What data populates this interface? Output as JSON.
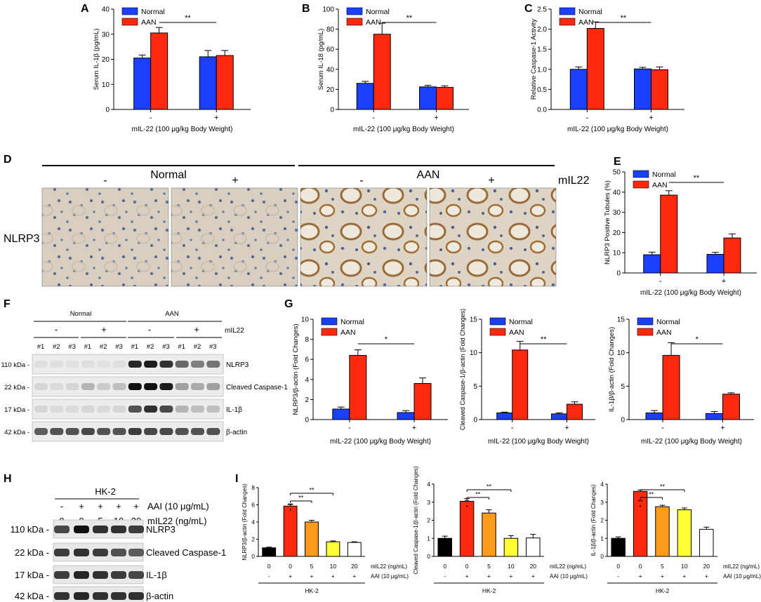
{
  "panel_letters": {
    "A": "A",
    "B": "B",
    "C": "C",
    "D": "D",
    "E": "E",
    "F": "F",
    "G": "G",
    "H": "H",
    "I": "I"
  },
  "colors": {
    "normal": "#1b3fff",
    "aan": "#ff2a0d",
    "black": "#000000",
    "orange": "#ff9a1a",
    "yellow": "#ffff33",
    "white": "#ffffff"
  },
  "legend": {
    "normal": "Normal",
    "aan": "AAN"
  },
  "sig": {
    "double": "**",
    "single": "*"
  },
  "xlabel_invivo": "mIL-22 (100 μg/kg Body Weight)",
  "xticks_invivo": [
    "-",
    "+"
  ],
  "panel_d": {
    "groups": [
      "Normal",
      "AAN"
    ],
    "signs": [
      "-",
      "+",
      "-",
      "+"
    ],
    "row_label": "NLRP3",
    "right_label": "mIL22"
  },
  "panel_f": {
    "groups": [
      "Normal",
      "AAN"
    ],
    "signs": [
      "-",
      "+",
      "-",
      "+"
    ],
    "row_label": "mIL22",
    "lanes": [
      "#1",
      "#2",
      "#3",
      "#1",
      "#2",
      "#3",
      "#1",
      "#2",
      "#3",
      "#1",
      "#2",
      "#3"
    ],
    "markers": [
      "110 kDa -",
      "22 kDa -",
      "17 kDa -",
      "42 kDa -"
    ],
    "proteins": [
      "NLRP3",
      "Cleaved Caspase-1",
      "IL-1β",
      "β-actin"
    ]
  },
  "panel_h": {
    "cell": "HK-2",
    "aai_signs": [
      "-",
      "+",
      "+",
      "+",
      "+"
    ],
    "aai_label": "AAI (10 μg/mL)",
    "doses": [
      "0",
      "0",
      "5",
      "10",
      "20"
    ],
    "dose_label": "mIL22 (ng/mL)",
    "markers": [
      "110 kDa -",
      "22 kDa -",
      "17 kDa -",
      "42 kDa -"
    ],
    "proteins": [
      "NLRP3",
      "Cleaved Caspase-1",
      "IL-1β",
      "β-actin"
    ]
  },
  "panel_i": {
    "row1": [
      "0",
      "0",
      "5",
      "10",
      "20"
    ],
    "row1_label": "mIL22 (ng/mL)",
    "row2": [
      "-",
      "+",
      "+",
      "+",
      "+"
    ],
    "row2_label": "AAI (10 μg/mL)",
    "cell": "HK-2"
  },
  "chart_data": [
    {
      "id": "A",
      "type": "bar",
      "categories": [
        "-",
        "+"
      ],
      "series": [
        {
          "name": "Normal",
          "values": [
            20.5,
            21
          ]
        },
        {
          "name": "AAN",
          "values": [
            30.5,
            21.5
          ]
        }
      ],
      "errors": [
        [
          1.2,
          2.5
        ],
        [
          2.2,
          2
        ]
      ],
      "ylabel": "Serum IL-1β (pg/mL)",
      "xlabel": "mIL-22 (100 μg/kg Body Weight)",
      "ylim": [
        0,
        40
      ],
      "yticks": [
        "0",
        "10",
        "20",
        "30",
        "40"
      ],
      "significance": "**"
    },
    {
      "id": "B",
      "type": "bar",
      "categories": [
        "-",
        "+"
      ],
      "series": [
        {
          "name": "Normal",
          "values": [
            26,
            22.5
          ]
        },
        {
          "name": "AAN",
          "values": [
            75,
            22
          ]
        }
      ],
      "errors": [
        [
          2,
          1.5
        ],
        [
          11,
          1.5
        ]
      ],
      "ylabel": "Serum IL-18 (pg/mL)",
      "xlabel": "mIL-22 (100 μg/kg Body Weight)",
      "ylim": [
        0,
        100
      ],
      "yticks": [
        "0",
        "20",
        "40",
        "60",
        "80",
        "100"
      ],
      "significance": "**"
    },
    {
      "id": "C",
      "type": "bar",
      "categories": [
        "-",
        "+"
      ],
      "series": [
        {
          "name": "Normal",
          "values": [
            1.0,
            1.01
          ]
        },
        {
          "name": "AAN",
          "values": [
            2.02,
            0.99
          ]
        }
      ],
      "errors": [
        [
          0.06,
          0.04
        ],
        [
          0.16,
          0.07
        ]
      ],
      "ylabel": "Relative Caspase-1 Activity",
      "xlabel": "mIL-22 (100 μg/kg Body Weight)",
      "ylim": [
        0,
        2.5
      ],
      "yticks": [
        "0.0",
        "0.5",
        "1.0",
        "1.5",
        "2.0",
        "2.5"
      ],
      "significance": "**"
    },
    {
      "id": "E",
      "type": "bar",
      "categories": [
        "-",
        "+"
      ],
      "series": [
        {
          "name": "Normal",
          "values": [
            9,
            9.2
          ]
        },
        {
          "name": "AAN",
          "values": [
            38.5,
            17.3
          ]
        }
      ],
      "errors": [
        [
          1.3,
          1
        ],
        [
          2.2,
          2
        ]
      ],
      "ylabel": "NLRP3 Positive Tubules (%)",
      "xlabel": "mIL-22 (100 μg/kg Body Weight)",
      "ylim": [
        0,
        50
      ],
      "yticks": [
        "0",
        "10",
        "20",
        "30",
        "40",
        "50"
      ],
      "significance": "**"
    },
    {
      "id": "G1",
      "type": "bar",
      "categories": [
        "-",
        "+"
      ],
      "series": [
        {
          "name": "Normal",
          "values": [
            1.05,
            0.7
          ]
        },
        {
          "name": "AAN",
          "values": [
            6.4,
            3.6
          ]
        }
      ],
      "errors": [
        [
          0.2,
          0.2
        ],
        [
          0.55,
          0.55
        ]
      ],
      "ylabel": "NLRP3/β-actin (Fold Changes)",
      "xlabel": "mIL-22 (100 μg/kg Body Weight)",
      "ylim": [
        0,
        10
      ],
      "yticks": [
        "0",
        "2",
        "4",
        "6",
        "8",
        "10"
      ],
      "significance": "*"
    },
    {
      "id": "G2",
      "type": "bar",
      "categories": [
        "-",
        "+"
      ],
      "series": [
        {
          "name": "Normal",
          "values": [
            1.0,
            0.85
          ]
        },
        {
          "name": "AAN",
          "values": [
            10.4,
            2.3
          ]
        }
      ],
      "errors": [
        [
          0.12,
          0.15
        ],
        [
          1.3,
          0.35
        ]
      ],
      "ylabel": "Cleaved Caspase-1/β-actin (Fold Changes)",
      "xlabel": "mIL-22 (100 μg/kg Body Weight)",
      "ylim": [
        0,
        15
      ],
      "yticks": [
        "0",
        "5",
        "10",
        "15"
      ],
      "significance": "**"
    },
    {
      "id": "G3",
      "type": "bar",
      "categories": [
        "-",
        "+"
      ],
      "series": [
        {
          "name": "Normal",
          "values": [
            1.0,
            0.9
          ]
        },
        {
          "name": "AAN",
          "values": [
            9.6,
            3.8
          ]
        }
      ],
      "errors": [
        [
          0.35,
          0.3
        ],
        [
          1.9,
          0.2
        ]
      ],
      "ylabel": "IL-1β/β-actin (Fold Changes)",
      "xlabel": "mIL-22 (100 μg/kg Body Weight)",
      "ylim": [
        0,
        15
      ],
      "yticks": [
        "0",
        "5",
        "10",
        "15"
      ],
      "significance": "*"
    },
    {
      "id": "I1",
      "type": "bar",
      "categories": [
        "0",
        "0",
        "5",
        "10",
        "20"
      ],
      "values": [
        1.0,
        5.85,
        4.0,
        1.7,
        1.62
      ],
      "errors": [
        0.08,
        0.2,
        0.2,
        0.1,
        0.08
      ],
      "ylabel": "NLRP3/β-actin (Fold Changes)",
      "ylim": [
        0,
        8
      ],
      "yticks": [
        "0",
        "2",
        "4",
        "6",
        "8"
      ],
      "significance": [
        "**",
        "**",
        "**"
      ]
    },
    {
      "id": "I2",
      "type": "bar",
      "categories": [
        "0",
        "0",
        "5",
        "10",
        "20"
      ],
      "values": [
        1.0,
        3.05,
        2.4,
        1.0,
        1.02
      ],
      "errors": [
        0.12,
        0.15,
        0.18,
        0.15,
        0.2
      ],
      "ylabel": "Cleaved Caspase-1/β-actin (Fold Changes)",
      "ylim": [
        0,
        4
      ],
      "yticks": [
        "0",
        "1",
        "2",
        "3",
        "4"
      ],
      "significance": [
        "**",
        "**",
        "**"
      ]
    },
    {
      "id": "I3",
      "type": "bar",
      "categories": [
        "0",
        "0",
        "5",
        "10",
        "20"
      ],
      "values": [
        1.0,
        3.6,
        2.75,
        2.58,
        1.5
      ],
      "errors": [
        0.08,
        0.08,
        0.08,
        0.1,
        0.12
      ],
      "ylabel": "IL-1β/β-actin (Fold Changes)",
      "ylim": [
        0,
        4
      ],
      "yticks": [
        "0",
        "1",
        "2",
        "3",
        "4"
      ],
      "significance": [
        "**",
        "**",
        "**"
      ]
    }
  ]
}
